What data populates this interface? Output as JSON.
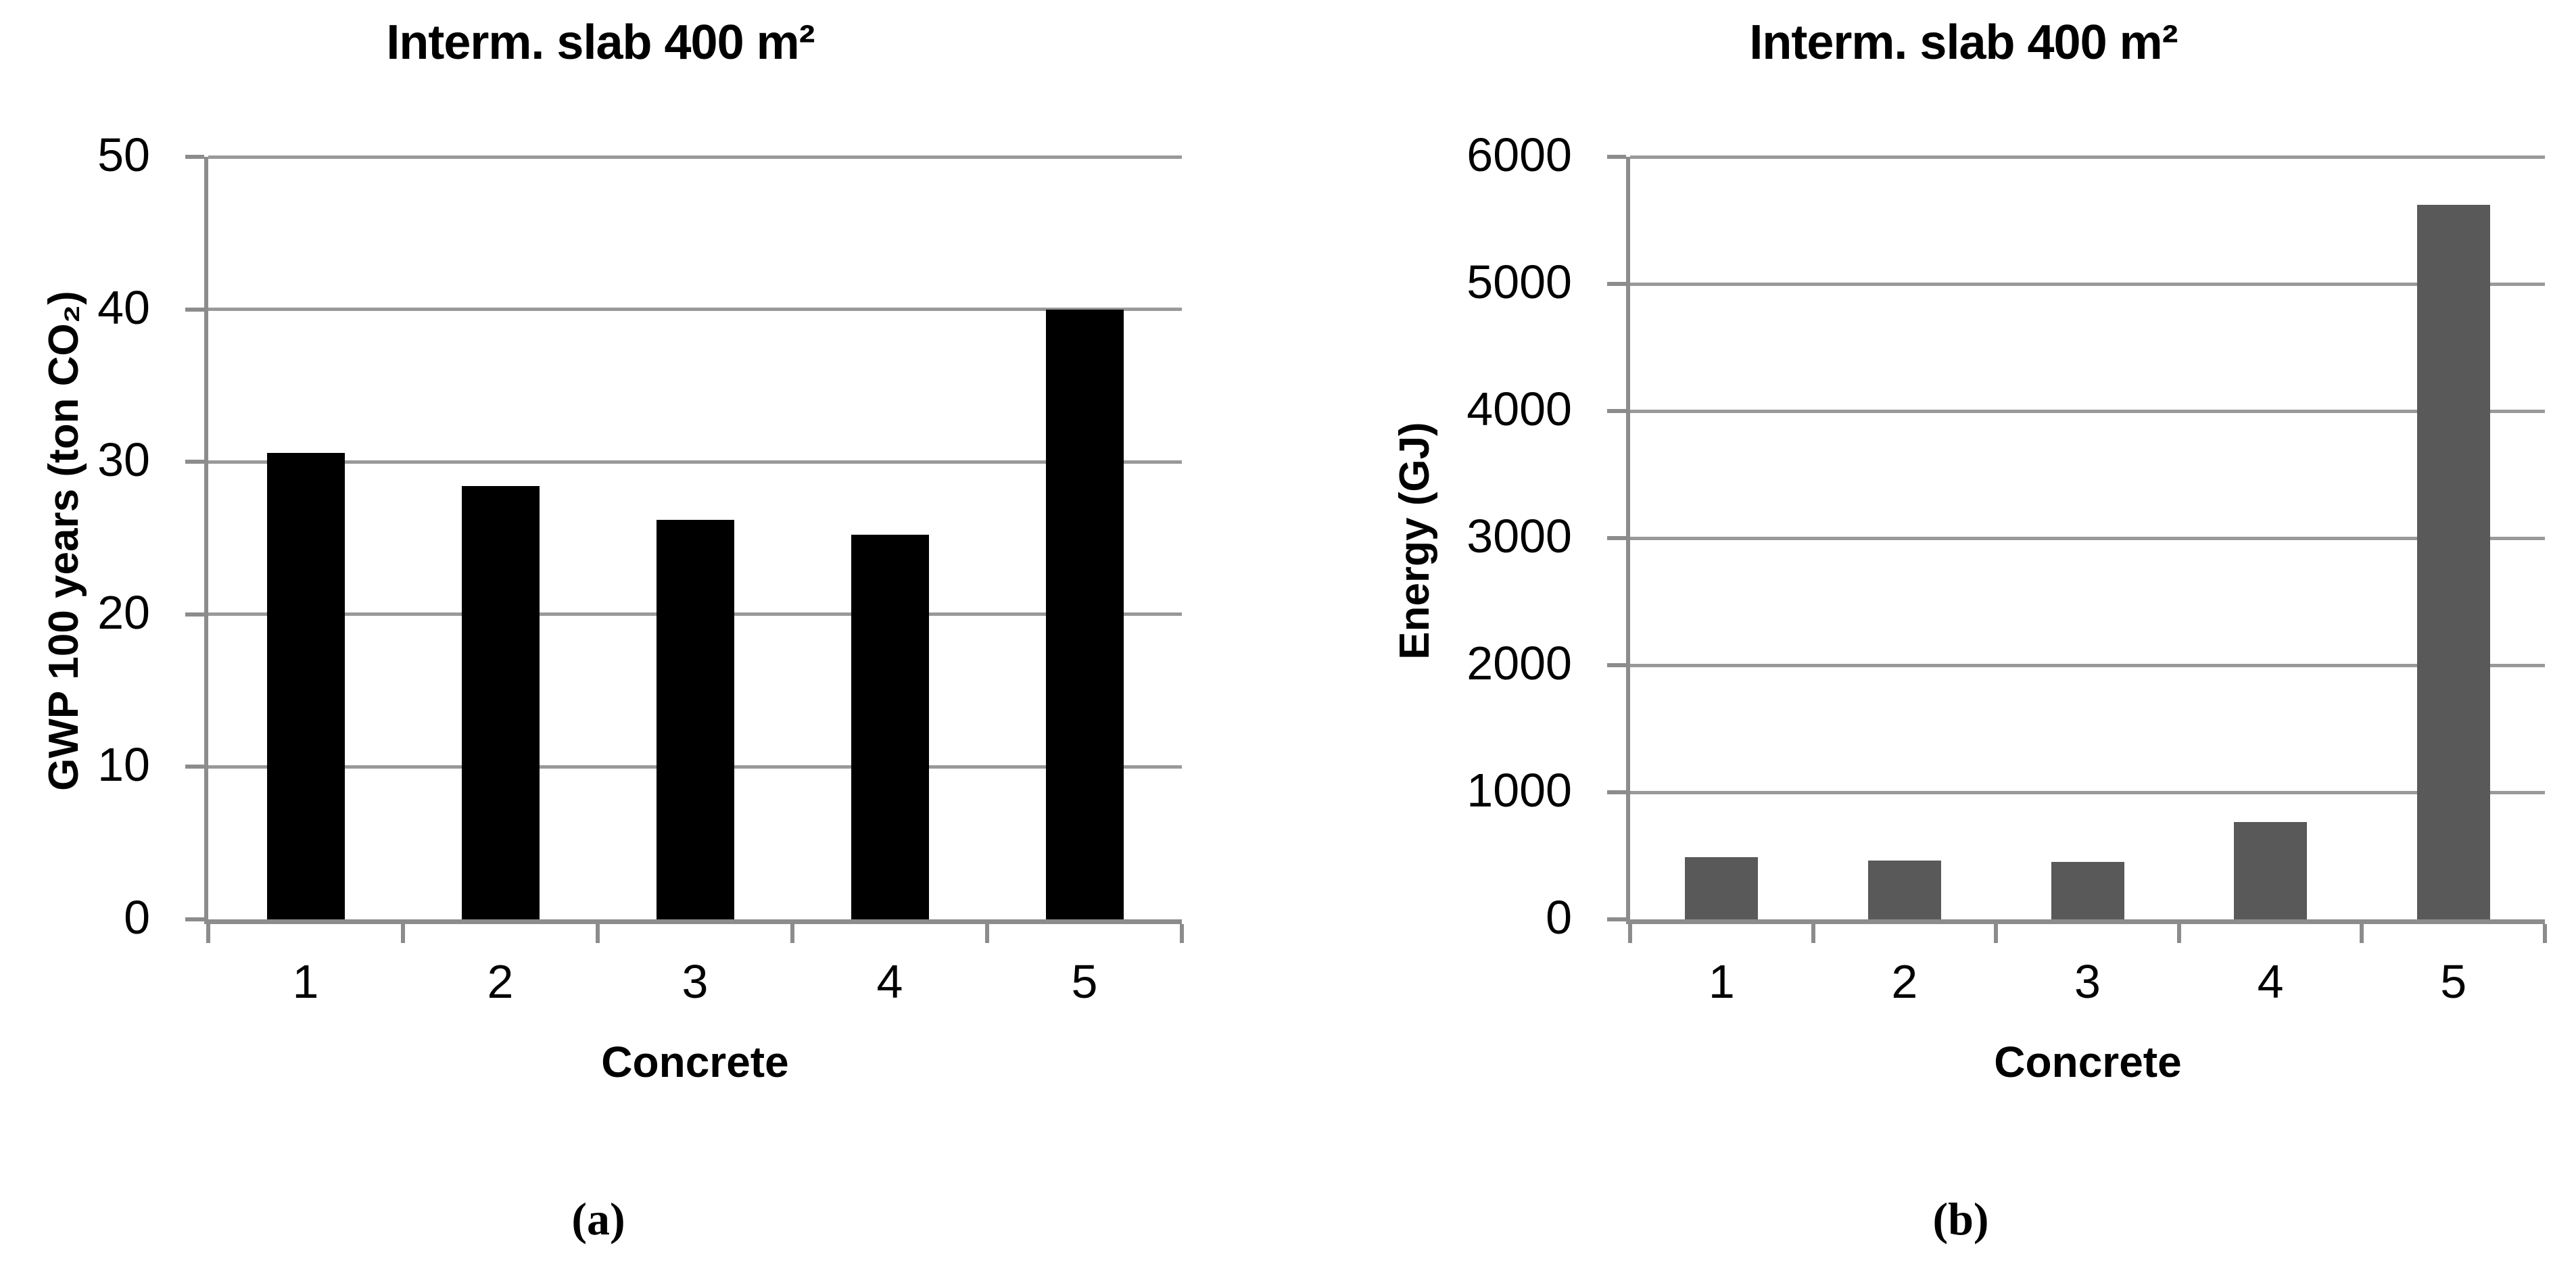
{
  "figure": {
    "description": "Two bar chart panels comparing five concrete types",
    "background": "#FFFFFF"
  },
  "colors": {
    "gridline": "#999999",
    "axis": "#8C8C8C",
    "text": "#000000",
    "panel_a_bar": "#000000",
    "panel_b_bar": "#595959"
  },
  "chart_data": [
    {
      "type": "bar",
      "panel": "a",
      "title": "Interm. slab 400 m²",
      "categories": [
        "1",
        "2",
        "3",
        "4",
        "5"
      ],
      "values": [
        30.6,
        28.4,
        26.2,
        25.2,
        40.0
      ],
      "xlabel": "Concrete",
      "ylabel": "GWP 100 years (ton CO₂)",
      "ylim": [
        0,
        50
      ],
      "yticks": [
        0,
        10,
        20,
        30,
        40,
        50
      ],
      "grid": true,
      "legend_position": "none",
      "bar_color": "#000000",
      "caption": "(a)"
    },
    {
      "type": "bar",
      "panel": "b",
      "title": "Interm. slab 400 m²",
      "categories": [
        "1",
        "2",
        "3",
        "4",
        "5"
      ],
      "values": [
        490,
        465,
        450,
        765,
        5620
      ],
      "xlabel": "Concrete",
      "ylabel": "Energy (GJ)",
      "ylim": [
        0,
        6000
      ],
      "yticks": [
        0,
        1000,
        2000,
        3000,
        4000,
        5000,
        6000
      ],
      "grid": true,
      "legend_position": "none",
      "bar_color": "#595959",
      "caption": "(b)"
    }
  ]
}
